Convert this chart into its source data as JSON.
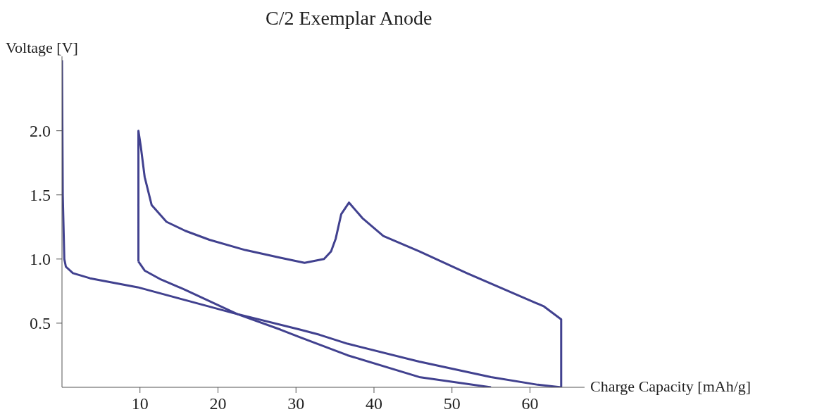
{
  "chart_data": {
    "type": "line",
    "title": "C/2 Exemplar Anode",
    "xlabel": "Charge Capacity [mAh/g]",
    "ylabel": "Voltage [V]",
    "xlim": [
      0,
      67
    ],
    "ylim": [
      0,
      2.58
    ],
    "xticks": [
      10,
      20,
      30,
      40,
      50,
      60
    ],
    "yticks": [
      {
        "value": 0.5,
        "label": "0.5"
      },
      {
        "value": 1,
        "label": "1.0"
      },
      {
        "value": 1.5,
        "label": "1.5"
      },
      {
        "value": 2,
        "label": "2.0"
      }
    ],
    "grid": false,
    "legend": false,
    "marker": "none",
    "line_style": "solid",
    "series": [
      {
        "color": "#41418f",
        "x": [
          0,
          0.1,
          0.3,
          0.5,
          1.4,
          3.6,
          9.7,
          15.8,
          21.9,
          30.5,
          33,
          36.6,
          45.8,
          55,
          61,
          64
        ],
        "values": [
          2.55,
          1.5,
          1.0,
          0.94,
          0.89,
          0.85,
          0.78,
          0.68,
          0.58,
          0.45,
          0.41,
          0.34,
          0.2,
          0.08,
          0.02,
          0
        ]
      },
      {
        "color": "#41418f",
        "x": [
          9.8,
          10.6,
          12.7,
          15.8,
          22.5,
          28,
          30.5,
          36.6,
          45.8,
          55
        ],
        "values": [
          0.98,
          0.91,
          0.84,
          0.76,
          0.57,
          0.45,
          0.39,
          0.25,
          0.08,
          0
        ]
      },
      {
        "color": "#41418f",
        "x": [
          9.8,
          9.8,
          10.1,
          10.6,
          11.5,
          13.4,
          15.8,
          18.9,
          23.5,
          28,
          31.1,
          33.6,
          34.5,
          35.1,
          35.8,
          36.8,
          38.5,
          41.2,
          45.8,
          51.9,
          61.8,
          64,
          64
        ],
        "values": [
          0.98,
          2.0,
          1.88,
          1.64,
          1.42,
          1.29,
          1.22,
          1.15,
          1.07,
          1.01,
          0.97,
          1.0,
          1.06,
          1.16,
          1.35,
          1.44,
          1.32,
          1.18,
          1.06,
          0.89,
          0.63,
          0.53,
          0
        ]
      }
    ]
  }
}
